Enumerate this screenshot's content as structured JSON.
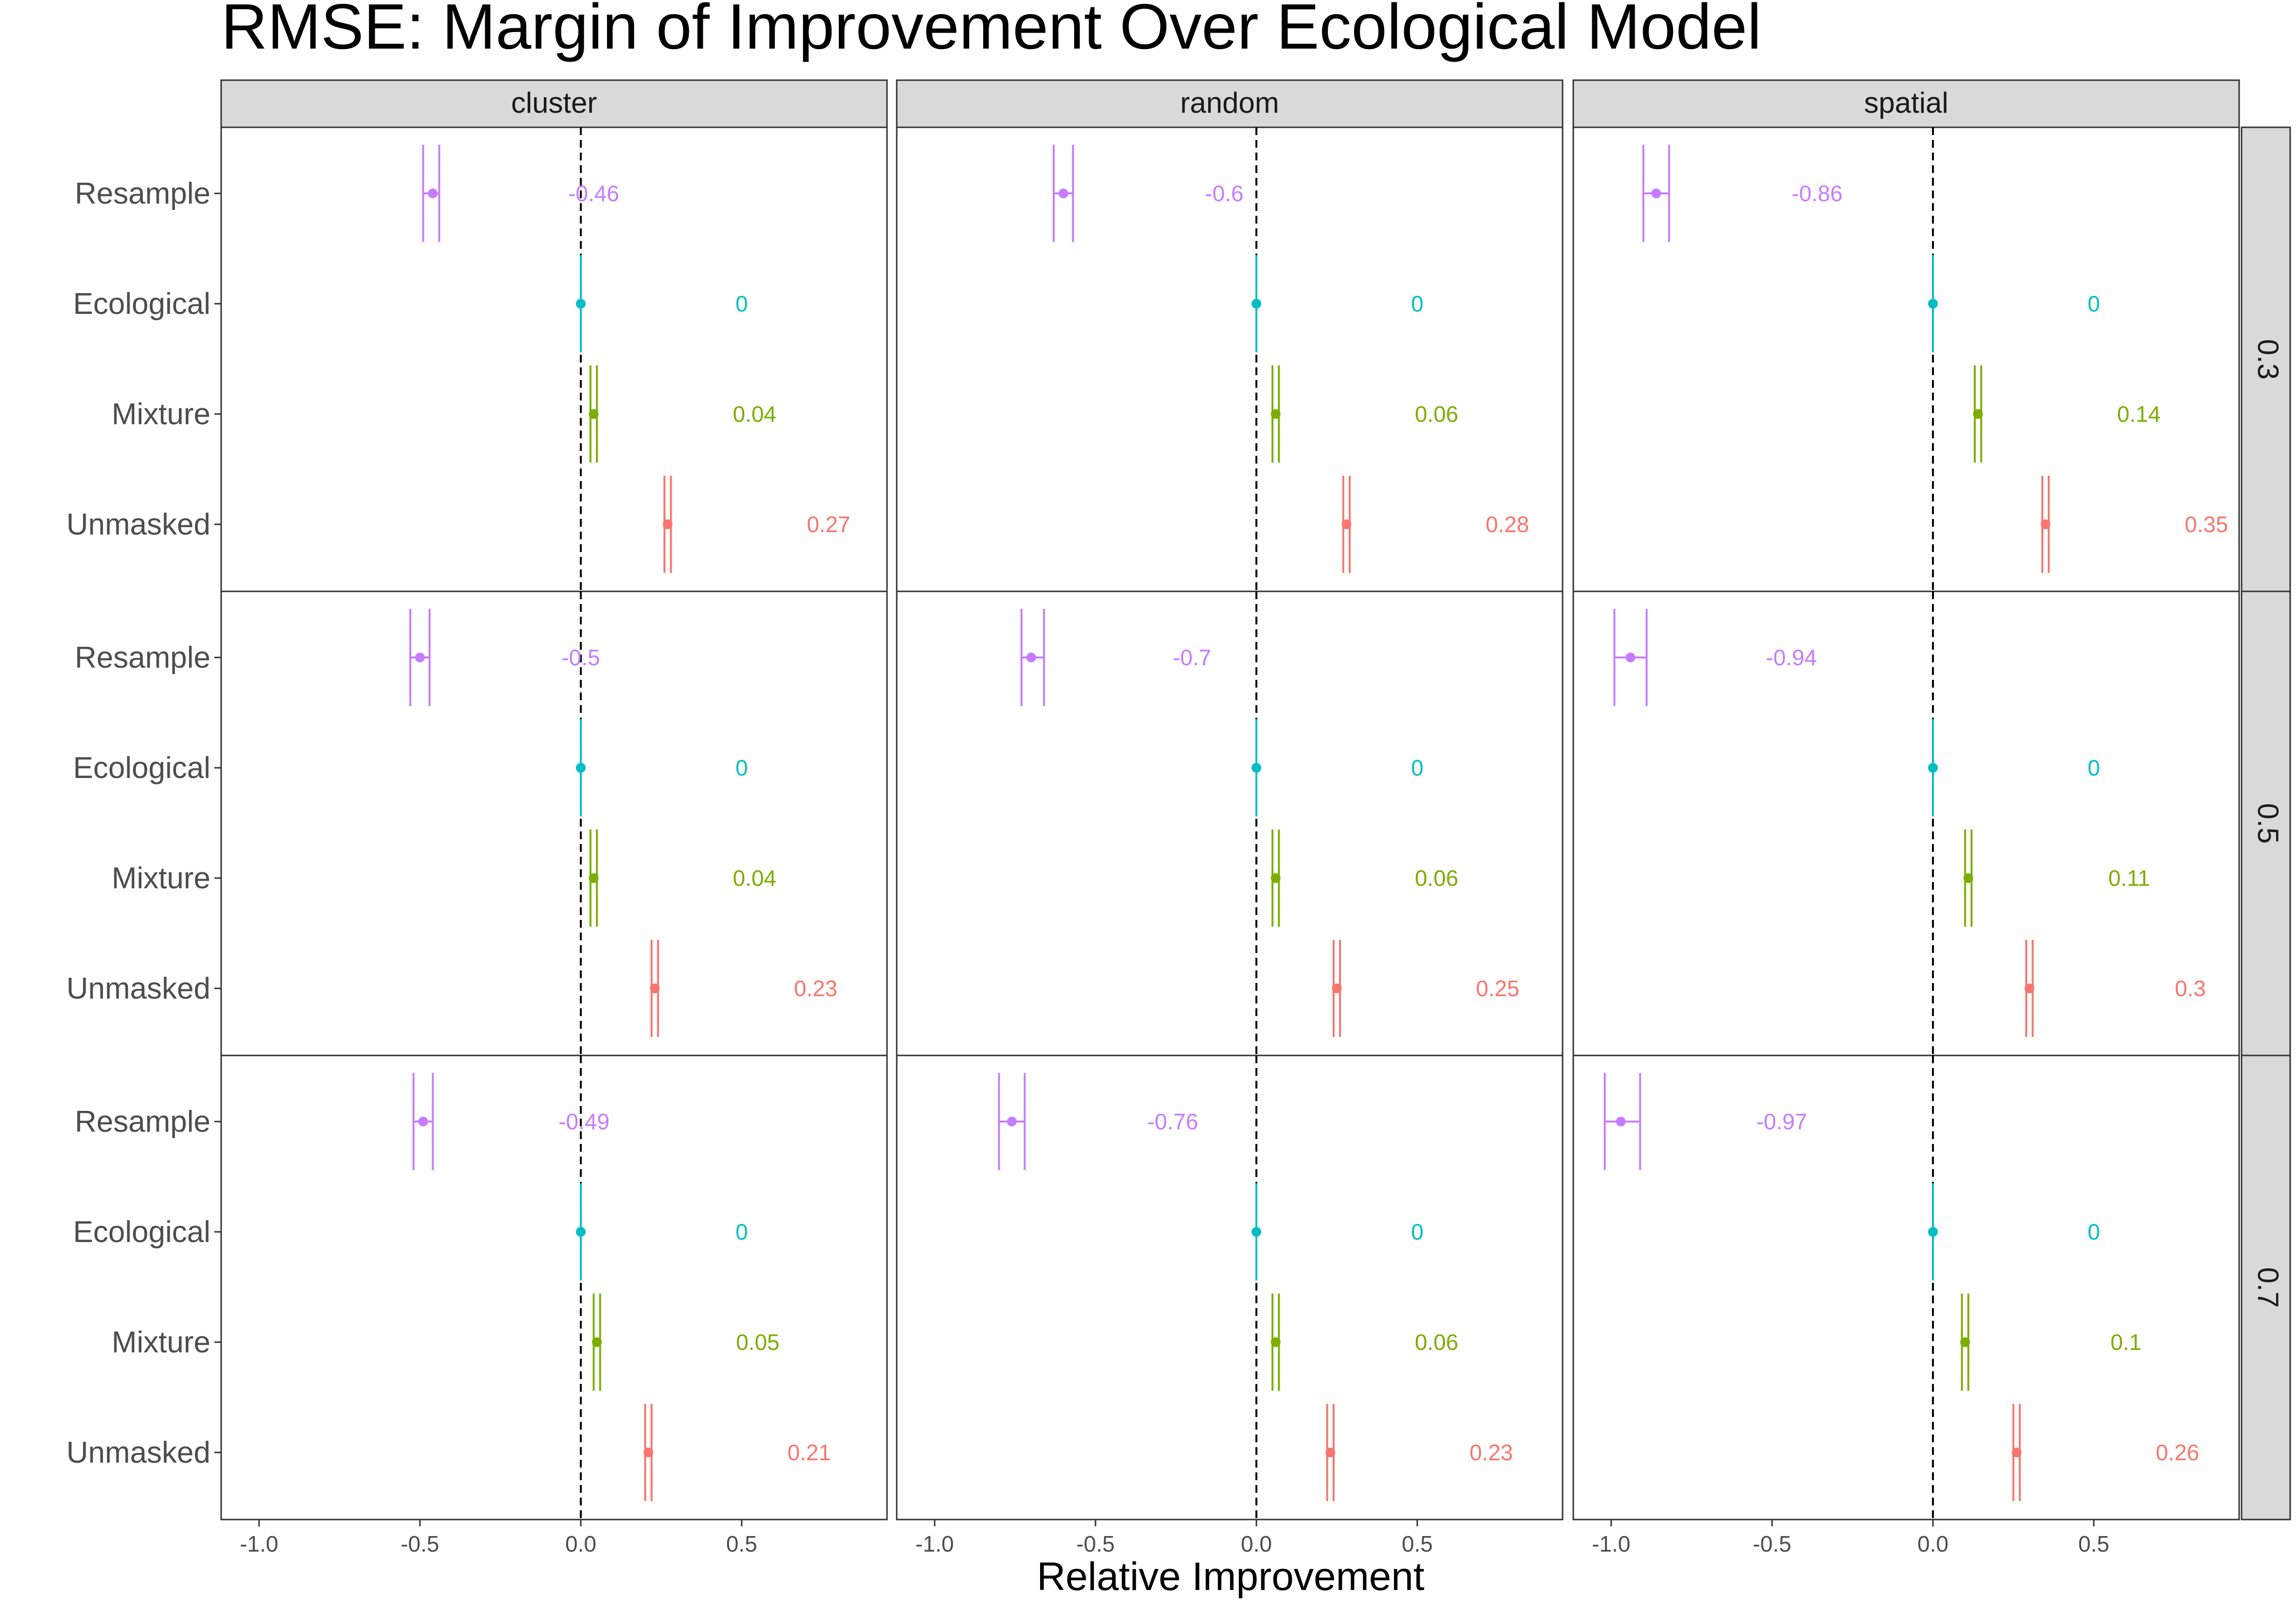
{
  "chart_data": {
    "type": "scatter",
    "title": "RMSE: Margin of Improvement Over Ecological Model",
    "xlabel": "Relative Improvement",
    "ylabel": "",
    "xlim": [
      -1.1,
      0.9
    ],
    "x_ticks": [
      -1.0,
      -0.5,
      0.0,
      0.5
    ],
    "x_tick_labels": [
      "-1.0",
      "-0.5",
      "0.0",
      "0.5"
    ],
    "reference_line": 0,
    "grid": false,
    "legend": "none",
    "facet_columns": [
      "cluster",
      "random",
      "spatial"
    ],
    "facet_rows": [
      "0.3",
      "0.5",
      "0.7"
    ],
    "models": [
      "Resample",
      "Ecological",
      "Mixture",
      "Unmasked"
    ],
    "colors": {
      "Resample": "#C77CFF",
      "Ecological": "#00BFC4",
      "Mixture": "#7CAE00",
      "Unmasked": "#F8766D"
    },
    "panels": [
      {
        "column": "cluster",
        "row": "0.3",
        "points": [
          {
            "model": "Resample",
            "value": -0.46,
            "low": -0.49,
            "high": -0.44,
            "label": "-0.46"
          },
          {
            "model": "Ecological",
            "value": 0,
            "low": 0,
            "high": 0,
            "label": "0"
          },
          {
            "model": "Mixture",
            "value": 0.04,
            "low": 0.03,
            "high": 0.05,
            "label": "0.04"
          },
          {
            "model": "Unmasked",
            "value": 0.27,
            "low": 0.26,
            "high": 0.28,
            "label": "0.27"
          }
        ]
      },
      {
        "column": "random",
        "row": "0.3",
        "points": [
          {
            "model": "Resample",
            "value": -0.6,
            "low": -0.63,
            "high": -0.57,
            "label": "-0.6"
          },
          {
            "model": "Ecological",
            "value": 0,
            "low": 0,
            "high": 0,
            "label": "0"
          },
          {
            "model": "Mixture",
            "value": 0.06,
            "low": 0.05,
            "high": 0.07,
            "label": "0.06"
          },
          {
            "model": "Unmasked",
            "value": 0.28,
            "low": 0.27,
            "high": 0.29,
            "label": "0.28"
          }
        ]
      },
      {
        "column": "spatial",
        "row": "0.3",
        "points": [
          {
            "model": "Resample",
            "value": -0.86,
            "low": -0.9,
            "high": -0.82,
            "label": "-0.86"
          },
          {
            "model": "Ecological",
            "value": 0,
            "low": 0,
            "high": 0,
            "label": "0"
          },
          {
            "model": "Mixture",
            "value": 0.14,
            "low": 0.13,
            "high": 0.15,
            "label": "0.14"
          },
          {
            "model": "Unmasked",
            "value": 0.35,
            "low": 0.34,
            "high": 0.36,
            "label": "0.35"
          }
        ]
      },
      {
        "column": "cluster",
        "row": "0.5",
        "points": [
          {
            "model": "Resample",
            "value": -0.5,
            "low": -0.53,
            "high": -0.47,
            "label": "-0.5"
          },
          {
            "model": "Ecological",
            "value": 0,
            "low": 0,
            "high": 0,
            "label": "0"
          },
          {
            "model": "Mixture",
            "value": 0.04,
            "low": 0.03,
            "high": 0.05,
            "label": "0.04"
          },
          {
            "model": "Unmasked",
            "value": 0.23,
            "low": 0.22,
            "high": 0.24,
            "label": "0.23"
          }
        ]
      },
      {
        "column": "random",
        "row": "0.5",
        "points": [
          {
            "model": "Resample",
            "value": -0.7,
            "low": -0.73,
            "high": -0.66,
            "label": "-0.7"
          },
          {
            "model": "Ecological",
            "value": 0,
            "low": 0,
            "high": 0,
            "label": "0"
          },
          {
            "model": "Mixture",
            "value": 0.06,
            "low": 0.05,
            "high": 0.07,
            "label": "0.06"
          },
          {
            "model": "Unmasked",
            "value": 0.25,
            "low": 0.24,
            "high": 0.26,
            "label": "0.25"
          }
        ]
      },
      {
        "column": "spatial",
        "row": "0.5",
        "points": [
          {
            "model": "Resample",
            "value": -0.94,
            "low": -0.99,
            "high": -0.89,
            "label": "-0.94"
          },
          {
            "model": "Ecological",
            "value": 0,
            "low": 0,
            "high": 0,
            "label": "0"
          },
          {
            "model": "Mixture",
            "value": 0.11,
            "low": 0.1,
            "high": 0.12,
            "label": "0.11"
          },
          {
            "model": "Unmasked",
            "value": 0.3,
            "low": 0.29,
            "high": 0.31,
            "label": "0.3"
          }
        ]
      },
      {
        "column": "cluster",
        "row": "0.7",
        "points": [
          {
            "model": "Resample",
            "value": -0.49,
            "low": -0.52,
            "high": -0.46,
            "label": "-0.49"
          },
          {
            "model": "Ecological",
            "value": 0,
            "low": 0,
            "high": 0,
            "label": "0"
          },
          {
            "model": "Mixture",
            "value": 0.05,
            "low": 0.04,
            "high": 0.06,
            "label": "0.05"
          },
          {
            "model": "Unmasked",
            "value": 0.21,
            "low": 0.2,
            "high": 0.22,
            "label": "0.21"
          }
        ]
      },
      {
        "column": "random",
        "row": "0.7",
        "points": [
          {
            "model": "Resample",
            "value": -0.76,
            "low": -0.8,
            "high": -0.72,
            "label": "-0.76"
          },
          {
            "model": "Ecological",
            "value": 0,
            "low": 0,
            "high": 0,
            "label": "0"
          },
          {
            "model": "Mixture",
            "value": 0.06,
            "low": 0.05,
            "high": 0.07,
            "label": "0.06"
          },
          {
            "model": "Unmasked",
            "value": 0.23,
            "low": 0.22,
            "high": 0.24,
            "label": "0.23"
          }
        ]
      },
      {
        "column": "spatial",
        "row": "0.7",
        "points": [
          {
            "model": "Resample",
            "value": -0.97,
            "low": -1.02,
            "high": -0.91,
            "label": "-0.97"
          },
          {
            "model": "Ecological",
            "value": 0,
            "low": 0,
            "high": 0,
            "label": "0"
          },
          {
            "model": "Mixture",
            "value": 0.1,
            "low": 0.09,
            "high": 0.11,
            "label": "0.1"
          },
          {
            "model": "Unmasked",
            "value": 0.26,
            "low": 0.25,
            "high": 0.27,
            "label": "0.26"
          }
        ]
      }
    ]
  }
}
